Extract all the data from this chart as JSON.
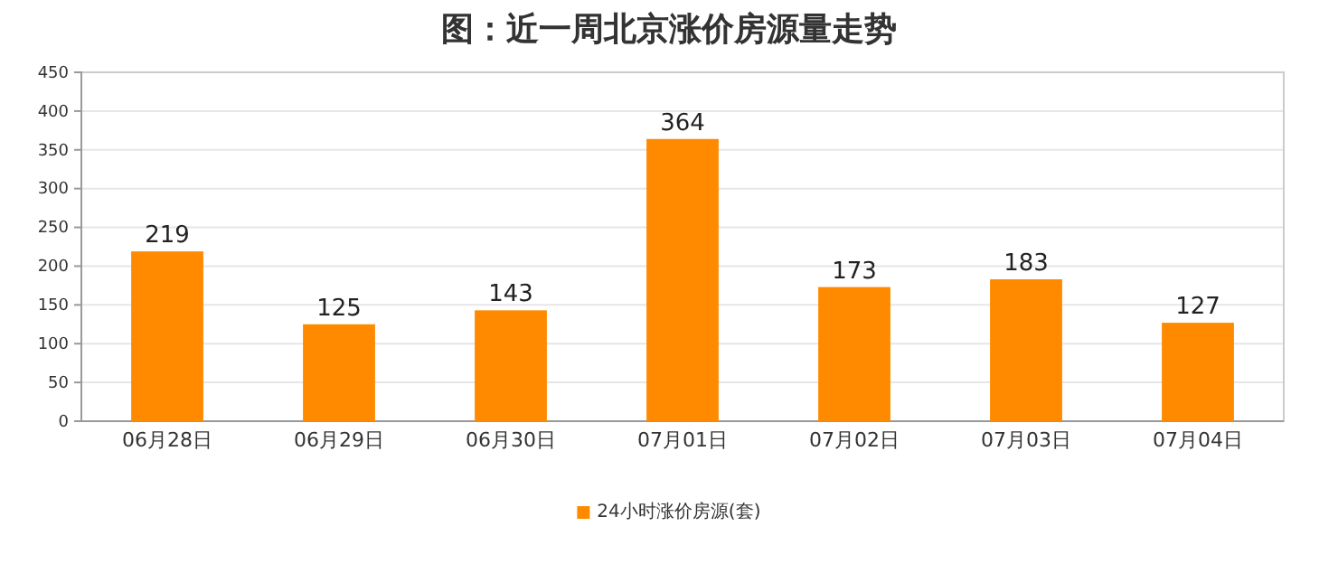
{
  "chart_data": {
    "type": "bar",
    "title": "图：近一周北京涨价房源量走势",
    "categories": [
      "06月28日",
      "06月29日",
      "06月30日",
      "07月01日",
      "07月02日",
      "07月03日",
      "07月04日"
    ],
    "series": [
      {
        "name": "24小时涨价房源(套)",
        "color": "#ff8a00",
        "values": [
          219,
          125,
          143,
          364,
          173,
          183,
          127
        ]
      }
    ],
    "ylim": [
      0,
      450
    ],
    "yticks": [
      0,
      50,
      100,
      150,
      200,
      250,
      300,
      350,
      400,
      450
    ],
    "grid": "y",
    "legend": "bottom",
    "data_labels": true
  }
}
